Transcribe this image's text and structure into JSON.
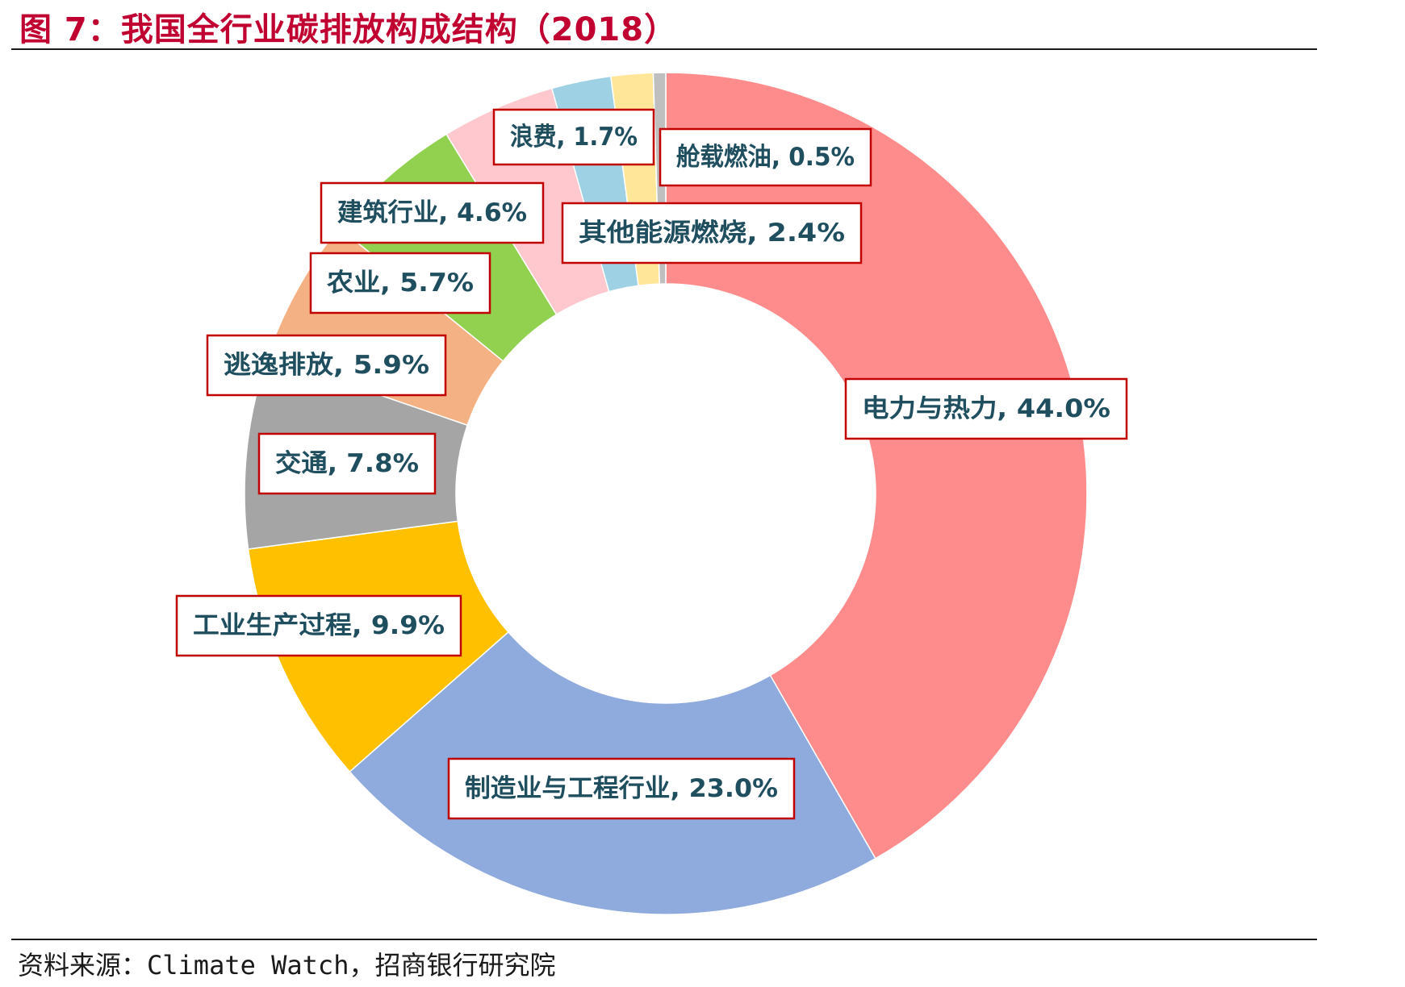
{
  "title": "图 7：我国全行业碳排放构成结构（2018）",
  "source": "资料来源：Climate Watch，招商银行研究院",
  "chart_data": {
    "type": "pie",
    "donut": true,
    "start_angle_deg": 0,
    "direction": "clockwise",
    "slices": [
      {
        "name": "电力与热力",
        "value": 44.0,
        "label": "电力与热力, 44.0%",
        "color": "#FF8C8C"
      },
      {
        "name": "制造业与工程行业",
        "value": 23.0,
        "label": "制造业与工程行业, 23.0%",
        "color": "#8FAADC"
      },
      {
        "name": "工业生产过程",
        "value": 9.9,
        "label": "工业生产过程, 9.9%",
        "color": "#FFC000"
      },
      {
        "name": "交通",
        "value": 7.8,
        "label": "交通, 7.8%",
        "color": "#A5A5A5"
      },
      {
        "name": "逃逸排放",
        "value": 5.9,
        "label": "逃逸排放, 5.9%",
        "color": "#F4B183"
      },
      {
        "name": "农业",
        "value": 5.7,
        "label": "农业, 5.7%",
        "color": "#92D050"
      },
      {
        "name": "建筑行业",
        "value": 4.6,
        "label": "建筑行业, 4.6%",
        "color": "#FFC7CE"
      },
      {
        "name": "其他能源燃烧",
        "value": 2.4,
        "label": "其他能源燃烧, 2.4%",
        "color": "#9DD1E3"
      },
      {
        "name": "浪费",
        "value": 1.7,
        "label": "浪费, 1.7%",
        "color": "#FFE699"
      },
      {
        "name": "舱载燃油",
        "value": 0.5,
        "label": "舱载燃油, 0.5%",
        "color": "#BFBFBF"
      }
    ]
  }
}
